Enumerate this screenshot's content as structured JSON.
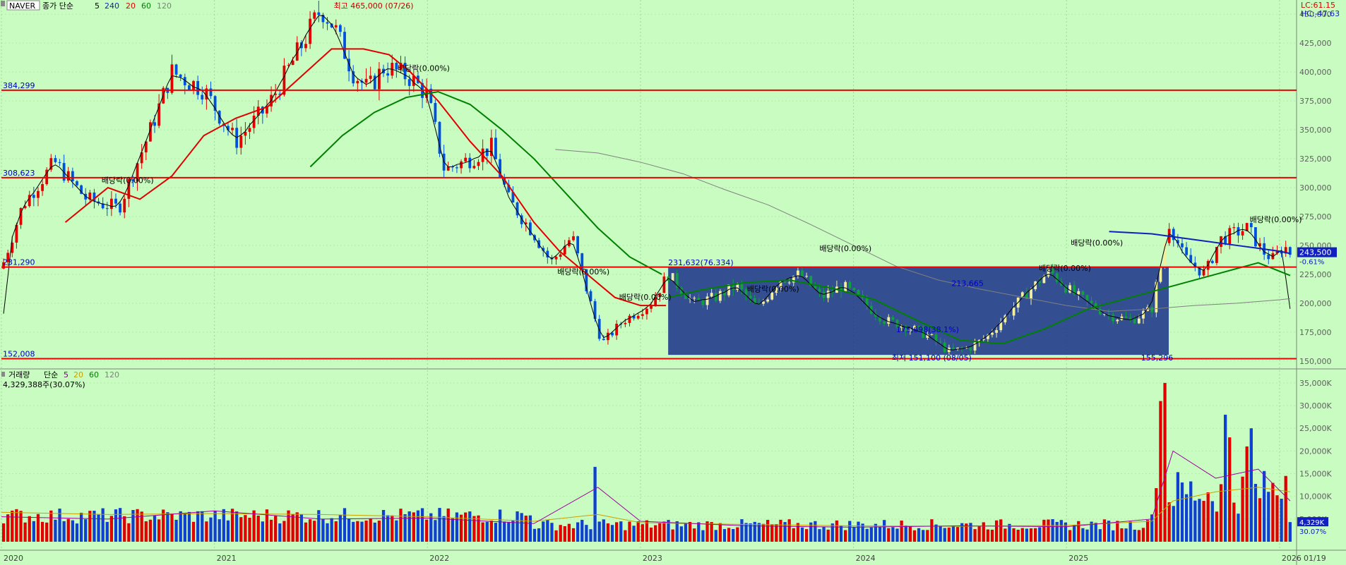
{
  "chart_data": [
    {
      "type": "candlestick",
      "legend": {
        "symbol": "NAVER",
        "series_label": "종가 단순",
        "ma_periods": [
          "5",
          "240",
          "20",
          "60",
          "120"
        ],
        "ma_colors": [
          "#000000",
          "#1020c0",
          "#e00000",
          "#008000",
          "#808080"
        ]
      },
      "top_right": {
        "lc": "LC:61.15",
        "hc": "HC:-47.63"
      },
      "y_axis": {
        "min": 145000,
        "max": 455000,
        "ticks": [
          "450,000",
          "425,000",
          "400,000",
          "375,000",
          "350,000",
          "325,000",
          "300,000",
          "275,000",
          "250,000",
          "225,000",
          "200,000",
          "175,000",
          "150,000"
        ],
        "tick_values": [
          450000,
          425000,
          400000,
          375000,
          350000,
          325000,
          300000,
          275000,
          250000,
          225000,
          200000,
          175000,
          150000
        ]
      },
      "x_axis": {
        "labels": [
          "2020",
          "2021",
          "2022",
          "2023",
          "2024",
          "2025",
          "2026",
          "01/19"
        ],
        "label_dates": [
          2020.0,
          2021.0,
          2022.0,
          2023.0,
          2024.0,
          2025.0,
          2026.0,
          2026.05
        ],
        "start": 2020.0,
        "end": 2026.08
      },
      "horizontal_lines": [
        {
          "value": 384299,
          "label": "384,299"
        },
        {
          "value": 308623,
          "label": "308,623"
        },
        {
          "value": 231290,
          "label": "231,290"
        },
        {
          "value": 152008,
          "label": "152,008"
        }
      ],
      "box": {
        "x_start": 2023.13,
        "x_end": 2025.48,
        "y_low": 155296,
        "y_high": 231632,
        "color": "#1a2f8a"
      },
      "annotations": [
        {
          "text": "최고 465,000 (07/26)",
          "x": 2021.56,
          "y": 455000,
          "color": "#c00000"
        },
        {
          "text": "231,632(76.334)",
          "x": 2023.13,
          "y": 233000,
          "color": "#0000c0"
        },
        {
          "text": "213,665",
          "x": 2024.46,
          "y": 215000,
          "color": "#0000c0"
        },
        {
          "text": "175,698(38.1%)",
          "x": 2024.2,
          "y": 175000,
          "color": "#0000c0"
        },
        {
          "text": "최저 151,100 (08/05)",
          "x": 2024.18,
          "y": 150500,
          "color": "#0000c0"
        },
        {
          "text": "155,296",
          "x": 2025.35,
          "y": 150500,
          "color": "#0000c0"
        },
        {
          "text": "배당락(0.00%)",
          "x": 2021.86,
          "y": 401000,
          "color": "#000000"
        },
        {
          "text": "배당락(0.00%)",
          "x": 2020.47,
          "y": 304000,
          "color": "#000000"
        },
        {
          "text": "배당락(0.00%)",
          "x": 2022.61,
          "y": 225000,
          "color": "#000000"
        },
        {
          "text": "배당락(0.00%)",
          "x": 2022.9,
          "y": 203000,
          "color": "#000000"
        },
        {
          "text": "배당락(0.00%)",
          "x": 2023.5,
          "y": 210000,
          "color": "#000000"
        },
        {
          "text": "배당락(0.00%)",
          "x": 2023.84,
          "y": 245000,
          "color": "#000000"
        },
        {
          "text": "배당락(0.00%)",
          "x": 2024.87,
          "y": 228000,
          "color": "#000000"
        },
        {
          "text": "배당락(0.00%)",
          "x": 2025.02,
          "y": 250000,
          "color": "#000000"
        },
        {
          "text": "배당락(0.00%)",
          "x": 2025.86,
          "y": 270000,
          "color": "#000000"
        }
      ],
      "last_price": {
        "value": 243500,
        "label": "243,500",
        "change": "-0.61%"
      },
      "price_path": {
        "dates": [
          2020.0,
          2020.1,
          2020.25,
          2020.4,
          2020.55,
          2020.7,
          2020.8,
          2020.95,
          2021.1,
          2021.25,
          2021.4,
          2021.5,
          2021.56,
          2021.65,
          2021.72,
          2021.8,
          2021.92,
          2022.0,
          2022.08,
          2022.2,
          2022.3,
          2022.38,
          2022.5,
          2022.58,
          2022.68,
          2022.75,
          2022.82,
          2022.92,
          2023.05,
          2023.13,
          2023.25,
          2023.35,
          2023.45,
          2023.55,
          2023.65,
          2023.75,
          2023.85,
          2023.95,
          2024.05,
          2024.15,
          2024.25,
          2024.35,
          2024.45,
          2024.55,
          2024.62,
          2024.72,
          2024.82,
          2024.92,
          2025.02,
          2025.1,
          2025.2,
          2025.3,
          2025.4,
          2025.48,
          2025.5,
          2025.55,
          2025.65,
          2025.72,
          2025.78,
          2025.85,
          2025.92,
          2025.97,
          2026.02,
          2026.05
        ],
        "close": [
          230000,
          285000,
          322000,
          290000,
          282000,
          350000,
          400000,
          385000,
          340000,
          370000,
          420000,
          455000,
          440000,
          400000,
          385000,
          405000,
          395000,
          380000,
          315000,
          325000,
          335000,
          290000,
          260000,
          235000,
          258000,
          210000,
          165000,
          185000,
          200000,
          225000,
          200000,
          205000,
          215000,
          195000,
          220000,
          225000,
          205000,
          215000,
          200000,
          185000,
          180000,
          172000,
          158000,
          162000,
          170000,
          190000,
          210000,
          228000,
          210000,
          200000,
          190000,
          185000,
          195000,
          270000,
          262000,
          240000,
          225000,
          255000,
          260000,
          265000,
          245000,
          238000,
          250000,
          243500
        ]
      },
      "moving_averages": [
        {
          "period": "20",
          "color": "#e00000",
          "dates": [
            2020.3,
            2020.5,
            2020.65,
            2020.8,
            2020.95,
            2021.1,
            2021.25,
            2021.4,
            2021.55,
            2021.7,
            2021.82,
            2021.92,
            2022.05,
            2022.2,
            2022.35,
            2022.5,
            2022.62,
            2022.75,
            2022.88,
            2023.0,
            2023.12
          ],
          "values": [
            270000,
            300000,
            290000,
            310000,
            345000,
            360000,
            370000,
            395000,
            420000,
            420000,
            415000,
            400000,
            375000,
            340000,
            310000,
            270000,
            245000,
            225000,
            205000,
            198000,
            198000
          ]
        },
        {
          "period": "60",
          "color": "#008000",
          "dates": [
            2021.45,
            2021.6,
            2021.75,
            2021.9,
            2022.05,
            2022.2,
            2022.35,
            2022.5,
            2022.65,
            2022.8,
            2022.95,
            2023.1
          ],
          "values": [
            318000,
            345000,
            365000,
            378000,
            383000,
            372000,
            350000,
            325000,
            295000,
            265000,
            240000,
            225000
          ]
        },
        {
          "period": "120",
          "color": "#808080",
          "dates": [
            2022.6,
            2022.8,
            2023.0,
            2023.2,
            2023.4,
            2023.6,
            2023.8,
            2024.0,
            2024.2,
            2024.4,
            2024.6,
            2024.8,
            2025.0,
            2025.2,
            2025.4,
            2025.6,
            2025.8,
            2026.0,
            2026.05
          ],
          "values": [
            333000,
            330000,
            322000,
            312000,
            298000,
            285000,
            268000,
            250000,
            232000,
            220000,
            212000,
            205000,
            198000,
            193000,
            195000,
            198000,
            200000,
            203000,
            204000
          ]
        },
        {
          "period": "240",
          "color": "#1020c0",
          "dates": [
            2025.2,
            2025.4,
            2025.6,
            2025.8,
            2026.0,
            2026.05
          ],
          "values": [
            262000,
            260000,
            255000,
            250000,
            245000,
            243000
          ]
        },
        {
          "period": "60",
          "color": "#008000",
          "dates": [
            2023.13,
            2023.3,
            2023.5,
            2023.7,
            2023.9,
            2024.1,
            2024.3,
            2024.5,
            2024.7,
            2024.9,
            2025.1,
            2025.3,
            2025.5,
            2025.7,
            2025.9,
            2026.05
          ],
          "values": [
            205000,
            212000,
            218000,
            220000,
            213000,
            203000,
            185000,
            168000,
            165000,
            178000,
            195000,
            205000,
            215000,
            225000,
            235000,
            224000
          ]
        }
      ]
    },
    {
      "type": "bar",
      "legend": {
        "series_label": "거래량",
        "kind": "단순",
        "ma_periods": [
          "5",
          "20",
          "60",
          "120"
        ],
        "ma_colors": [
          "#800080",
          "#c8a000",
          "#008000",
          "#808080"
        ],
        "last_value": "4,329,388주(30.07%)"
      },
      "y_axis": {
        "min": 0,
        "max": 37000000,
        "ticks": [
          "35,000K",
          "30,000K",
          "25,000K",
          "20,000K",
          "15,000K",
          "10,000K",
          "5,000K"
        ],
        "tick_values": [
          35000000,
          30000000,
          25000000,
          20000000,
          15000000,
          10000000,
          5000000
        ]
      },
      "last_volume": {
        "value": 4329000,
        "label": "4,329K",
        "percent": "30.07%"
      },
      "spikes": [
        {
          "x": 2022.78,
          "value": 16500000,
          "up": true
        },
        {
          "x": 2025.45,
          "value": 31000000,
          "up": true
        },
        {
          "x": 2025.47,
          "value": 35000000,
          "up": true
        },
        {
          "x": 2025.75,
          "value": 28000000,
          "up": true
        },
        {
          "x": 2025.77,
          "value": 23000000,
          "up": false
        },
        {
          "x": 2025.85,
          "value": 21000000,
          "up": true
        },
        {
          "x": 2025.87,
          "value": 25000000,
          "up": true
        },
        {
          "x": 2025.95,
          "value": 11000000,
          "up": true
        },
        {
          "x": 2026.02,
          "value": 14500000,
          "up": true
        },
        {
          "x": 2026.05,
          "value": 4329000,
          "up": false
        }
      ]
    }
  ]
}
